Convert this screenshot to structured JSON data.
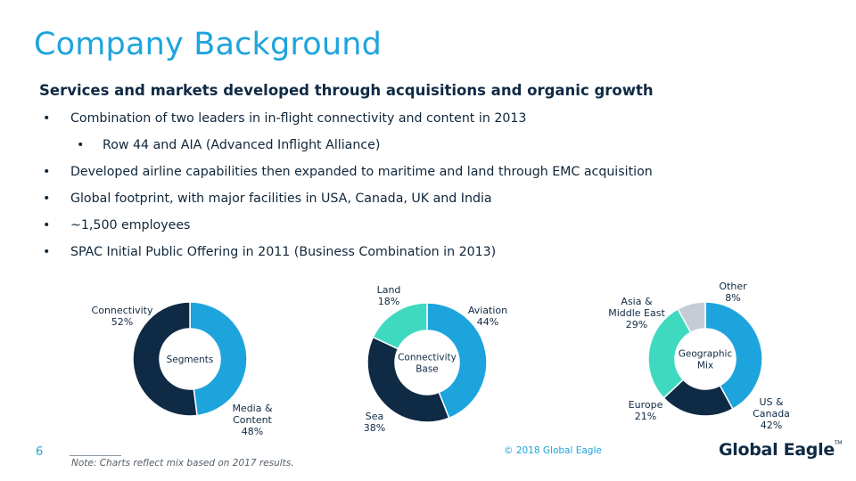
{
  "title": "Company Background",
  "subtitle": "Services and markets developed through acquisitions and organic growth",
  "bullets": [
    {
      "level": 1,
      "text": "Combination of two leaders in in-flight connectivity and content in 2013"
    },
    {
      "level": 2,
      "text": "Row 44 and AIA (Advanced Inflight Alliance)"
    },
    {
      "level": 1,
      "text": "Developed airline capabilities then expanded to maritime and land through EMC acquisition"
    },
    {
      "level": 1,
      "text": "Global footprint, with major facilities in USA, Canada, UK and India"
    },
    {
      "level": 1,
      "text": "~1,500 employees"
    },
    {
      "level": 1,
      "text": "SPAC Initial Public Offering in 2011 (Business Combination in 2013)"
    }
  ],
  "bullet_symbol": "•",
  "colors": {
    "title": "#1ea4dd",
    "light_blue": "#1ea4dd",
    "navy": "#0f2a44",
    "teal": "#3fd9c0",
    "gray": "#c5ccd3"
  },
  "chart_data": [
    {
      "type": "pie",
      "center_label": [
        "Segments"
      ],
      "slices": [
        {
          "label": [
            "Media &",
            "Content",
            "48%"
          ],
          "value": 48,
          "color": "#1ea4dd"
        },
        {
          "label": [
            "Connectivity",
            "52%"
          ],
          "value": 52,
          "color": "#0f2a44"
        }
      ]
    },
    {
      "type": "pie",
      "center_label": [
        "Connectivity",
        "Base"
      ],
      "slices": [
        {
          "label": [
            "Aviation",
            "44%"
          ],
          "value": 44,
          "color": "#1ea4dd"
        },
        {
          "label": [
            "Sea",
            "38%"
          ],
          "value": 38,
          "color": "#0f2a44"
        },
        {
          "label": [
            "Land",
            "18%"
          ],
          "value": 18,
          "color": "#3fd9c0"
        }
      ]
    },
    {
      "type": "pie",
      "center_label": [
        "Geographic",
        "Mix"
      ],
      "slices": [
        {
          "label": [
            "US &",
            "Canada",
            "42%"
          ],
          "value": 42,
          "color": "#1ea4dd"
        },
        {
          "label": [
            "Europe",
            "21%"
          ],
          "value": 21,
          "color": "#0f2a44"
        },
        {
          "label": [
            "Asia &",
            "Middle East",
            "29%"
          ],
          "value": 29,
          "color": "#3fd9c0"
        },
        {
          "label": [
            "Other",
            "8%"
          ],
          "value": 8,
          "color": "#c5ccd3"
        }
      ]
    }
  ],
  "footer": {
    "page_number": "6",
    "note": "Note: Charts reflect mix based on 2017 results.",
    "copyright": "© 2018 Global Eagle",
    "logo_text": "Global Eagle",
    "logo_tm": "TM"
  }
}
